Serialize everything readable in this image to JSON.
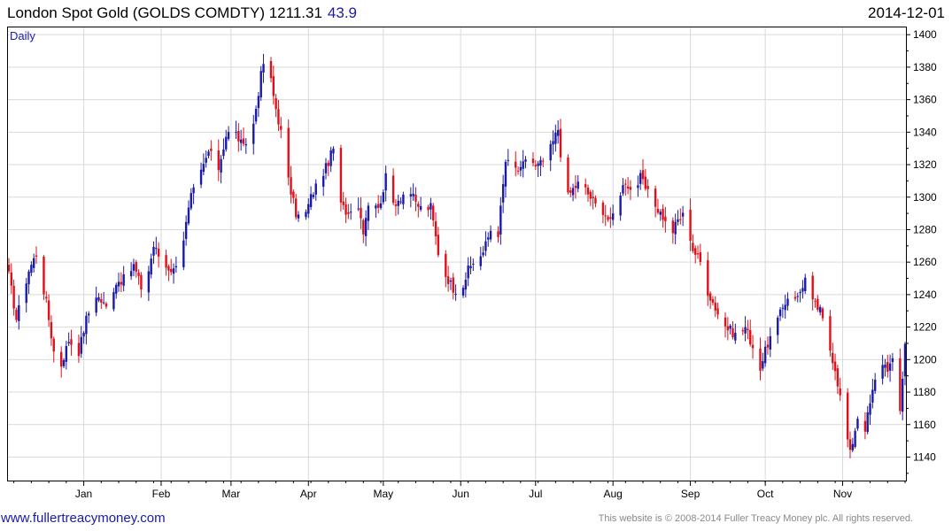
{
  "header": {
    "title": "London Spot Gold (GOLDS COMDTY) 1211.31",
    "change": "43.9",
    "date": "2014-12-01"
  },
  "colors": {
    "up": "#1a1aa8",
    "down": "#e0101a",
    "grid": "#d9d9d9",
    "accent": "#1a1aa8"
  },
  "footer": {
    "website": "www.fullertreacymoney.com",
    "copyright": "This website is © 2008-2014 Fuller Treacy Money plc. All rights reserved."
  },
  "chart_data": {
    "type": "candlestick",
    "period_label": "Daily",
    "y_axis_side": "right",
    "ylim": [
      1125,
      1405
    ],
    "yticks": [
      1140,
      1160,
      1180,
      1200,
      1220,
      1240,
      1260,
      1280,
      1300,
      1320,
      1340,
      1360,
      1380,
      1400
    ],
    "xlim_days": [
      0,
      359
    ],
    "xticks": [
      {
        "label": "Jan",
        "day": 30
      },
      {
        "label": "Feb",
        "day": 61
      },
      {
        "label": "Mar",
        "day": 89
      },
      {
        "label": "Apr",
        "day": 120
      },
      {
        "label": "May",
        "day": 150
      },
      {
        "label": "Jun",
        "day": 181
      },
      {
        "label": "Jul",
        "day": 211
      },
      {
        "label": "Aug",
        "day": 242
      },
      {
        "label": "Sep",
        "day": 273
      },
      {
        "label": "Oct",
        "day": 303
      },
      {
        "label": "Nov",
        "day": 334
      }
    ],
    "grid": true,
    "close_path": [
      [
        0,
        1252
      ],
      [
        3,
        1225
      ],
      [
        8,
        1255
      ],
      [
        11,
        1265
      ],
      [
        15,
        1235
      ],
      [
        18,
        1205
      ],
      [
        20,
        1192
      ],
      [
        24,
        1212
      ],
      [
        28,
        1205
      ],
      [
        31,
        1225
      ],
      [
        35,
        1240
      ],
      [
        39,
        1232
      ],
      [
        43,
        1248
      ],
      [
        47,
        1250
      ],
      [
        50,
        1258
      ],
      [
        54,
        1240
      ],
      [
        58,
        1270
      ],
      [
        62,
        1258
      ],
      [
        66,
        1255
      ],
      [
        70,
        1275
      ],
      [
        73,
        1300
      ],
      [
        77,
        1315
      ],
      [
        80,
        1328
      ],
      [
        84,
        1318
      ],
      [
        87,
        1338
      ],
      [
        90,
        1342
      ],
      [
        94,
        1330
      ],
      [
        98,
        1345
      ],
      [
        101,
        1375
      ],
      [
        103,
        1390
      ],
      [
        106,
        1362
      ],
      [
        109,
        1340
      ],
      [
        112,
        1310
      ],
      [
        115,
        1290
      ],
      [
        118,
        1285
      ],
      [
        121,
        1300
      ],
      [
        124,
        1310
      ],
      [
        127,
        1318
      ],
      [
        130,
        1330
      ],
      [
        133,
        1295
      ],
      [
        136,
        1290
      ],
      [
        139,
        1302
      ],
      [
        142,
        1280
      ],
      [
        145,
        1305
      ],
      [
        148,
        1292
      ],
      [
        151,
        1312
      ],
      [
        154,
        1296
      ],
      [
        157,
        1300
      ],
      [
        160,
        1306
      ],
      [
        163,
        1296
      ],
      [
        166,
        1292
      ],
      [
        169,
        1294
      ],
      [
        172,
        1266
      ],
      [
        175,
        1252
      ],
      [
        178,
        1244
      ],
      [
        181,
        1242
      ],
      [
        184,
        1255
      ],
      [
        187,
        1262
      ],
      [
        190,
        1266
      ],
      [
        193,
        1280
      ],
      [
        196,
        1278
      ],
      [
        199,
        1322
      ],
      [
        202,
        1318
      ],
      [
        205,
        1316
      ],
      [
        208,
        1328
      ],
      [
        211,
        1318
      ],
      [
        214,
        1322
      ],
      [
        217,
        1330
      ],
      [
        220,
        1342
      ],
      [
        223,
        1298
      ],
      [
        226,
        1305
      ],
      [
        229,
        1310
      ],
      [
        232,
        1302
      ],
      [
        235,
        1295
      ],
      [
        238,
        1292
      ],
      [
        241,
        1284
      ],
      [
        244,
        1300
      ],
      [
        247,
        1310
      ],
      [
        250,
        1302
      ],
      [
        253,
        1312
      ],
      [
        256,
        1302
      ],
      [
        259,
        1295
      ],
      [
        262,
        1288
      ],
      [
        265,
        1276
      ],
      [
        268,
        1286
      ],
      [
        271,
        1290
      ],
      [
        274,
        1268
      ],
      [
        277,
        1260
      ],
      [
        280,
        1242
      ],
      [
        283,
        1232
      ],
      [
        286,
        1222
      ],
      [
        289,
        1218
      ],
      [
        292,
        1214
      ],
      [
        295,
        1220
      ],
      [
        298,
        1208
      ],
      [
        301,
        1195
      ],
      [
        304,
        1210
      ],
      [
        307,
        1220
      ],
      [
        310,
        1232
      ],
      [
        313,
        1242
      ],
      [
        316,
        1238
      ],
      [
        319,
        1250
      ],
      [
        322,
        1235
      ],
      [
        325,
        1230
      ],
      [
        328,
        1212
      ],
      [
        331,
        1195
      ],
      [
        334,
        1168
      ],
      [
        337,
        1142
      ],
      [
        340,
        1165
      ],
      [
        343,
        1158
      ],
      [
        346,
        1180
      ],
      [
        349,
        1200
      ],
      [
        352,
        1195
      ],
      [
        355,
        1200
      ],
      [
        357,
        1168
      ],
      [
        359,
        1211
      ]
    ]
  }
}
